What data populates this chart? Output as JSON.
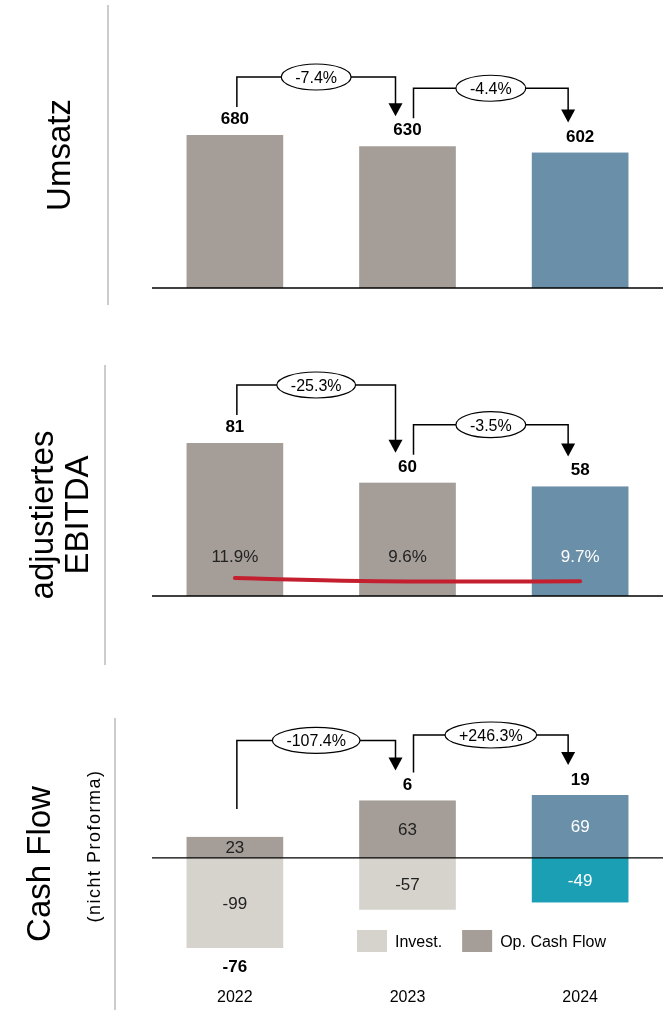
{
  "chart_data": [
    {
      "type": "bar",
      "ylabel": "Umsatz",
      "categories": [
        "2022",
        "2023",
        "2024"
      ],
      "values": [
        680,
        630,
        602
      ],
      "colors": [
        "#a59e98",
        "#a59e98",
        "#6a8fa8"
      ],
      "data_labels": true,
      "annotations": [
        "-7.4%",
        "-4.4%"
      ],
      "tick_labels": false
    },
    {
      "type": "bar",
      "ylabel": "adjustiertes EBITDA",
      "categories": [
        "2022",
        "2023",
        "2024"
      ],
      "series": [
        {
          "type": "bar",
          "colors": [
            "#a59e98",
            "#a59e98",
            "#6a8fa8"
          ],
          "values": [
            81,
            60,
            58
          ]
        },
        {
          "type": "line",
          "axis": "y2",
          "color": "#c41f2f",
          "values": [
            11.9,
            9.6,
            9.7
          ],
          "value_labels": [
            "11.9%",
            "9.6%",
            "9.7%"
          ]
        }
      ],
      "data_labels": true,
      "annotations": [
        "-25.3%",
        "-3.5%"
      ],
      "tick_labels": false
    },
    {
      "type": "bar",
      "ylabel": "Cash Flow",
      "subtitle": "(nicht Proforma)",
      "categories": [
        "2022",
        "2023",
        "2024"
      ],
      "stacked": true,
      "series": [
        {
          "name": "Invest.",
          "colors": [
            "#d6d3cd",
            "#d6d3cd",
            "#1a9fb4"
          ],
          "values": [
            -99,
            -57,
            -49
          ]
        },
        {
          "name": "Op. Cash Flow",
          "colors": [
            "#a59e98",
            "#a59e98",
            "#6a8fa8"
          ],
          "values": [
            23,
            63,
            69
          ]
        }
      ],
      "data_labels": true,
      "totals": [
        "-76",
        "6",
        "19"
      ],
      "legend": "bottom right",
      "annotations": [
        "-107.4%",
        "+246.3%"
      ]
    }
  ]
}
